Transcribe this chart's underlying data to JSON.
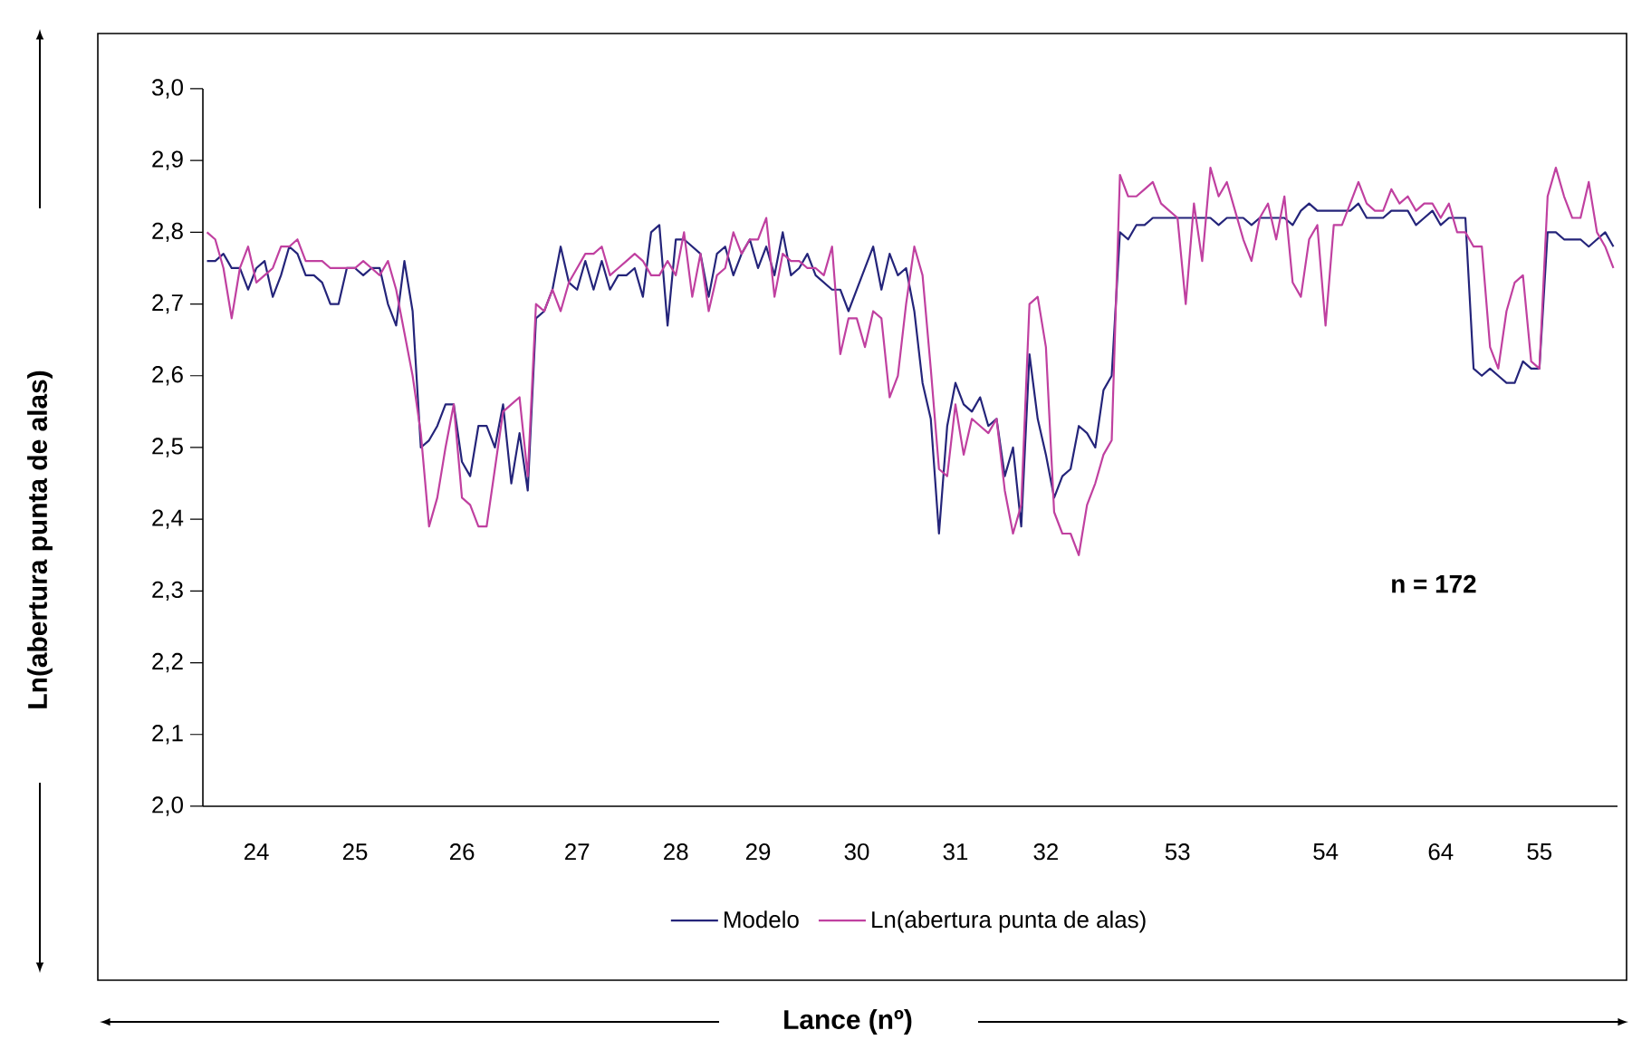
{
  "chart_data": {
    "type": "line",
    "ylabel": "Ln(abertura punta de alas)",
    "annotations": [
      "n = 172",
      "Lance (nº)"
    ],
    "categories": [
      null,
      null,
      null,
      null,
      null,
      null,
      "24",
      null,
      null,
      null,
      null,
      null,
      null,
      null,
      null,
      null,
      null,
      null,
      "25",
      null,
      null,
      null,
      null,
      null,
      null,
      null,
      null,
      null,
      null,
      null,
      null,
      "26",
      null,
      null,
      null,
      null,
      null,
      null,
      null,
      null,
      null,
      null,
      null,
      null,
      null,
      "27",
      null,
      null,
      null,
      null,
      null,
      null,
      null,
      null,
      null,
      null,
      null,
      "28",
      null,
      null,
      null,
      null,
      null,
      null,
      null,
      null,
      null,
      "29",
      null,
      null,
      null,
      null,
      null,
      null,
      null,
      null,
      null,
      null,
      null,
      "30",
      null,
      null,
      null,
      null,
      null,
      null,
      null,
      null,
      null,
      null,
      null,
      "31",
      null,
      null,
      null,
      null,
      null,
      null,
      null,
      null,
      null,
      null,
      "32",
      null,
      null,
      null,
      null,
      null,
      null,
      null,
      null,
      null,
      null,
      null,
      null,
      null,
      null,
      null,
      "53",
      null,
      null,
      null,
      null,
      null,
      null,
      null,
      null,
      null,
      null,
      null,
      null,
      null,
      null,
      null,
      null,
      null,
      "54",
      null,
      null,
      null,
      null,
      null,
      null,
      null,
      null,
      null,
      null,
      null,
      null,
      null,
      "64",
      null,
      null,
      null,
      null,
      null,
      null,
      null,
      null,
      null,
      null,
      null,
      "55",
      null,
      null,
      null,
      null,
      null,
      null,
      null,
      null,
      null
    ],
    "ylim": [
      2.0,
      3.0
    ],
    "yticks": [
      {
        "value": 2.0,
        "label": "2,0"
      },
      {
        "value": 2.1,
        "label": "2,1"
      },
      {
        "value": 2.2,
        "label": "2,2"
      },
      {
        "value": 2.3,
        "label": "2,3"
      },
      {
        "value": 2.4,
        "label": "2,4"
      },
      {
        "value": 2.5,
        "label": "2,5"
      },
      {
        "value": 2.6,
        "label": "2,6"
      },
      {
        "value": 2.7,
        "label": "2,7"
      },
      {
        "value": 2.8,
        "label": "2,8"
      },
      {
        "value": 2.9,
        "label": "2,9"
      },
      {
        "value": 3.0,
        "label": "3,0"
      }
    ],
    "grid": false,
    "legend": "bottom",
    "marker": "none",
    "series": [
      {
        "name": "Modelo",
        "color": "#24247a",
        "values": [
          2.76,
          2.76,
          2.77,
          2.75,
          2.75,
          2.72,
          2.75,
          2.76,
          2.71,
          2.74,
          2.78,
          2.77,
          2.74,
          2.74,
          2.73,
          2.7,
          2.7,
          2.75,
          2.75,
          2.74,
          2.75,
          2.75,
          2.7,
          2.67,
          2.76,
          2.69,
          2.5,
          2.51,
          2.53,
          2.56,
          2.56,
          2.48,
          2.46,
          2.53,
          2.53,
          2.5,
          2.56,
          2.45,
          2.52,
          2.44,
          2.68,
          2.69,
          2.72,
          2.78,
          2.73,
          2.72,
          2.76,
          2.72,
          2.76,
          2.72,
          2.74,
          2.74,
          2.75,
          2.71,
          2.8,
          2.81,
          2.67,
          2.79,
          2.79,
          2.78,
          2.77,
          2.71,
          2.77,
          2.78,
          2.74,
          2.77,
          2.79,
          2.75,
          2.78,
          2.74,
          2.8,
          2.74,
          2.75,
          2.77,
          2.74,
          2.73,
          2.72,
          2.72,
          2.69,
          2.72,
          2.75,
          2.78,
          2.72,
          2.77,
          2.74,
          2.75,
          2.69,
          2.59,
          2.54,
          2.38,
          2.53,
          2.59,
          2.56,
          2.55,
          2.57,
          2.53,
          2.54,
          2.46,
          2.5,
          2.39,
          2.63,
          2.54,
          2.49,
          2.43,
          2.46,
          2.47,
          2.53,
          2.52,
          2.5,
          2.58,
          2.6,
          2.8,
          2.79,
          2.81,
          2.81,
          2.82,
          2.82,
          2.82,
          2.82,
          2.82,
          2.82,
          2.82,
          2.82,
          2.81,
          2.82,
          2.82,
          2.82,
          2.81,
          2.82,
          2.82,
          2.82,
          2.82,
          2.81,
          2.83,
          2.84,
          2.83,
          2.83,
          2.83,
          2.83,
          2.83,
          2.84,
          2.82,
          2.82,
          2.82,
          2.83,
          2.83,
          2.83,
          2.81,
          2.82,
          2.83,
          2.81,
          2.82,
          2.82,
          2.82,
          2.61,
          2.6,
          2.61,
          2.6,
          2.59,
          2.59,
          2.62,
          2.61,
          2.61,
          2.8,
          2.8,
          2.79,
          2.79,
          2.79,
          2.78,
          2.79,
          2.8,
          2.78
        ]
      },
      {
        "name": "Ln(abertura punta de alas)",
        "color": "#c040a0",
        "values": [
          2.8,
          2.79,
          2.75,
          2.68,
          2.75,
          2.78,
          2.73,
          2.74,
          2.75,
          2.78,
          2.78,
          2.79,
          2.76,
          2.76,
          2.76,
          2.75,
          2.75,
          2.75,
          2.75,
          2.76,
          2.75,
          2.74,
          2.76,
          2.72,
          2.66,
          2.6,
          2.52,
          2.39,
          2.43,
          2.5,
          2.56,
          2.43,
          2.42,
          2.39,
          2.39,
          2.47,
          2.55,
          2.56,
          2.57,
          2.46,
          2.7,
          2.69,
          2.72,
          2.69,
          2.73,
          2.75,
          2.77,
          2.77,
          2.78,
          2.74,
          2.75,
          2.76,
          2.77,
          2.76,
          2.74,
          2.74,
          2.76,
          2.74,
          2.8,
          2.71,
          2.77,
          2.69,
          2.74,
          2.75,
          2.8,
          2.77,
          2.79,
          2.79,
          2.82,
          2.71,
          2.77,
          2.76,
          2.76,
          2.75,
          2.75,
          2.74,
          2.78,
          2.63,
          2.68,
          2.68,
          2.64,
          2.69,
          2.68,
          2.57,
          2.6,
          2.7,
          2.78,
          2.74,
          2.61,
          2.47,
          2.46,
          2.56,
          2.49,
          2.54,
          2.53,
          2.52,
          2.54,
          2.44,
          2.38,
          2.42,
          2.7,
          2.71,
          2.64,
          2.41,
          2.38,
          2.38,
          2.35,
          2.42,
          2.45,
          2.49,
          2.51,
          2.88,
          2.85,
          2.85,
          2.86,
          2.87,
          2.84,
          2.83,
          2.82,
          2.7,
          2.84,
          2.76,
          2.89,
          2.85,
          2.87,
          2.83,
          2.79,
          2.76,
          2.82,
          2.84,
          2.79,
          2.85,
          2.73,
          2.71,
          2.79,
          2.81,
          2.67,
          2.81,
          2.81,
          2.84,
          2.87,
          2.84,
          2.83,
          2.83,
          2.86,
          2.84,
          2.85,
          2.83,
          2.84,
          2.84,
          2.82,
          2.84,
          2.8,
          2.8,
          2.78,
          2.78,
          2.64,
          2.61,
          2.69,
          2.73,
          2.74,
          2.62,
          2.61,
          2.85,
          2.89,
          2.85,
          2.82,
          2.82,
          2.87,
          2.8,
          2.78,
          2.75
        ]
      }
    ]
  }
}
